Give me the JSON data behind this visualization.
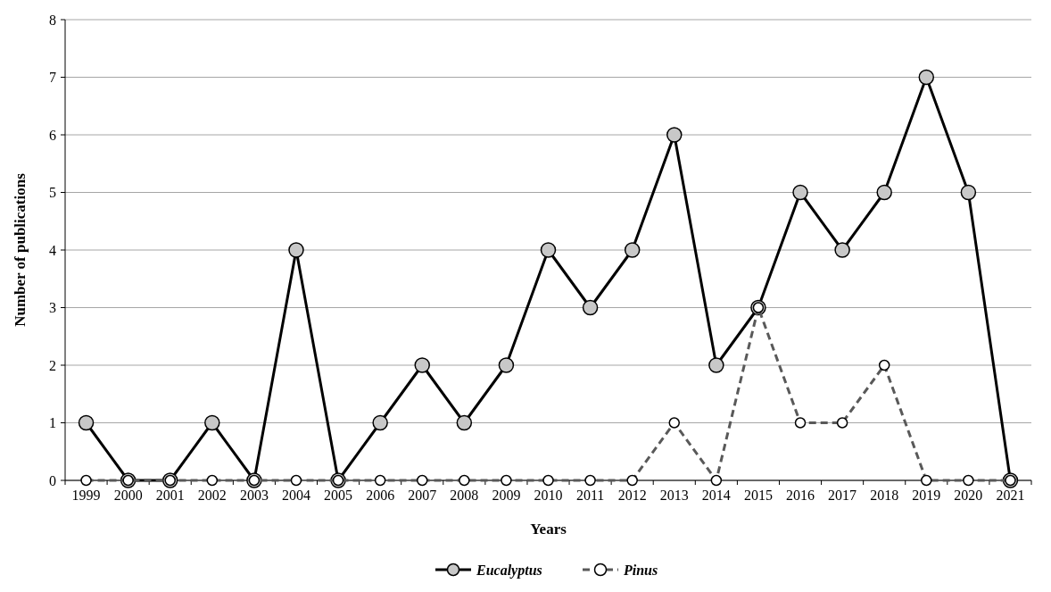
{
  "chart_data": {
    "type": "line",
    "xlabel": "Years",
    "ylabel": "Number of publications",
    "categories": [
      "1999",
      "2000",
      "2001",
      "2002",
      "2003",
      "2004",
      "2005",
      "2006",
      "2007",
      "2008",
      "2009",
      "2010",
      "2011",
      "2012",
      "2013",
      "2014",
      "2015",
      "2016",
      "2017",
      "2018",
      "2019",
      "2020",
      "2021"
    ],
    "series": [
      {
        "name": "Eucalyptus",
        "color": "#000000",
        "line_style": "solid",
        "values": [
          1,
          0,
          0,
          1,
          0,
          4,
          0,
          1,
          2,
          1,
          2,
          4,
          3,
          4,
          6,
          2,
          3,
          5,
          4,
          5,
          7,
          5,
          0
        ]
      },
      {
        "name": "Pinus",
        "color": "#595959",
        "line_style": "dashed",
        "values": [
          0,
          0,
          0,
          0,
          0,
          0,
          0,
          0,
          0,
          0,
          0,
          0,
          0,
          0,
          1,
          0,
          3,
          1,
          1,
          2,
          0,
          0,
          0
        ]
      }
    ],
    "ylim": [
      0,
      8
    ],
    "yticks": [
      0,
      1,
      2,
      3,
      4,
      5,
      6,
      7,
      8
    ],
    "grid": "y",
    "legend": "bottom",
    "marker": "circle"
  }
}
